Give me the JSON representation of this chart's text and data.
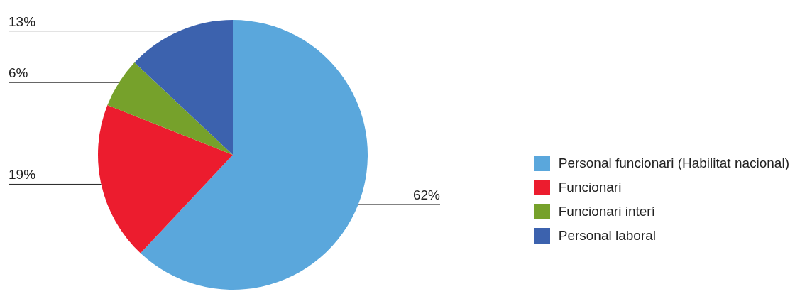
{
  "chart_data": {
    "type": "pie",
    "categories": [
      "Personal funcionari (Habilitat nacional)",
      "Funcionari",
      "Funcionari interí",
      "Personal laboral"
    ],
    "values": [
      62,
      19,
      6,
      13
    ],
    "colors": [
      "#5aa7dc",
      "#ec1c2e",
      "#76a12b",
      "#3c62ae"
    ],
    "value_labels": [
      "62%",
      "19%",
      "6%",
      "13%"
    ],
    "legend": "right"
  }
}
